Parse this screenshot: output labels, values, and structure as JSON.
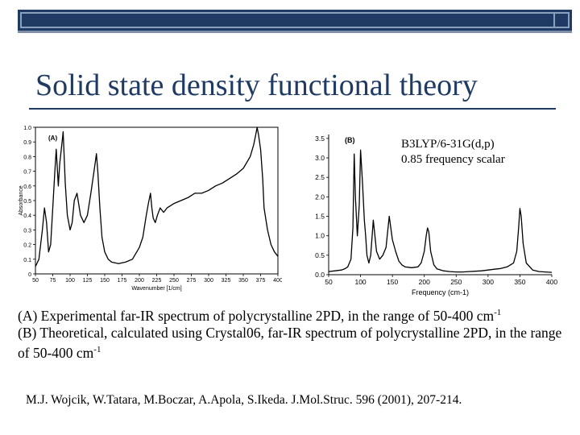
{
  "slide": {
    "title": "Solid state density functional theory",
    "method_line1": "B3LYP/6-31G(d,p)",
    "method_line2": "0.85 frequency scalar",
    "caption_a": "(A) Experimental far-IR spectrum of polycrystalline 2PD, in the range of 50-400 cm",
    "caption_a_sup": "-1",
    "caption_b": "(B) Theoretical, calculated using Crystal06, far-IR spectrum of polycrystalline 2PD, in the range of 50-400 cm",
    "caption_b_sup": "-1",
    "reference": "M.J. Wojcik, W.Tatara, M.Boczar, A.Apola, S.Ikeda. J.Mol.Struc. 596 (2001), 207-214."
  },
  "chart_data": [
    {
      "type": "line",
      "panel_label": "(A)",
      "title": "",
      "xlabel": "Wavenumber [1/cm]",
      "ylabel": "Absorbance",
      "xlim": [
        50,
        400
      ],
      "ylim": [
        0,
        1.0
      ],
      "xticks": [
        50,
        75,
        100,
        125,
        150,
        175,
        200,
        225,
        250,
        275,
        300,
        325,
        350,
        375,
        400
      ],
      "yticks": [
        0,
        0.1,
        0.2,
        0.3,
        0.4,
        0.5,
        0.6,
        0.7,
        0.8,
        0.9,
        1.0
      ],
      "xtick_labels": [
        "50",
        "75",
        "100",
        "125",
        "150",
        "175",
        "200",
        "225",
        "250",
        "275",
        "300",
        "325",
        "350",
        "375",
        "400"
      ],
      "ytick_labels": [
        "0",
        "0.1",
        "0.2",
        "0.3",
        "0.4",
        "0.5",
        "0.6",
        "0.7",
        "0.8",
        "0.9",
        "1.0"
      ],
      "x": [
        50,
        55,
        60,
        63,
        66,
        69,
        72,
        75,
        78,
        80,
        83,
        85,
        88,
        90,
        93,
        96,
        100,
        103,
        106,
        110,
        115,
        120,
        125,
        130,
        133,
        136,
        138,
        140,
        143,
        146,
        150,
        155,
        160,
        170,
        180,
        190,
        200,
        205,
        210,
        213,
        216,
        218,
        220,
        223,
        226,
        230,
        235,
        240,
        250,
        260,
        270,
        280,
        290,
        300,
        310,
        320,
        330,
        340,
        350,
        360,
        365,
        368,
        370,
        372,
        375,
        378,
        380,
        385,
        390,
        395,
        400
      ],
      "y": [
        0.05,
        0.1,
        0.3,
        0.45,
        0.35,
        0.15,
        0.2,
        0.45,
        0.7,
        0.85,
        0.6,
        0.75,
        0.88,
        0.97,
        0.62,
        0.4,
        0.3,
        0.35,
        0.5,
        0.55,
        0.4,
        0.35,
        0.4,
        0.55,
        0.65,
        0.75,
        0.82,
        0.7,
        0.45,
        0.25,
        0.15,
        0.1,
        0.08,
        0.07,
        0.08,
        0.1,
        0.18,
        0.25,
        0.4,
        0.48,
        0.55,
        0.45,
        0.38,
        0.35,
        0.4,
        0.45,
        0.42,
        0.45,
        0.48,
        0.5,
        0.52,
        0.55,
        0.55,
        0.57,
        0.6,
        0.62,
        0.65,
        0.68,
        0.72,
        0.8,
        0.88,
        0.95,
        1.0,
        0.95,
        0.85,
        0.65,
        0.45,
        0.3,
        0.2,
        0.15,
        0.12
      ]
    },
    {
      "type": "line",
      "panel_label": "(B)",
      "title": "",
      "xlabel": "Frequency (cm-1)",
      "ylabel": "",
      "xlim": [
        50,
        400
      ],
      "ylim": [
        0,
        3.6
      ],
      "xticks": [
        50,
        100,
        150,
        200,
        250,
        300,
        350,
        400
      ],
      "yticks": [
        0.0,
        0.5,
        1.0,
        1.5,
        2.0,
        2.5,
        3.0,
        3.5
      ],
      "xtick_labels": [
        "50",
        "100",
        "150",
        "200",
        "250",
        "300",
        "350",
        "400"
      ],
      "ytick_labels": [
        "0.0",
        "0.5",
        "1.0",
        "1.5",
        "2.0",
        "2.5",
        "3.0",
        "3.5"
      ],
      "x": [
        50,
        60,
        70,
        75,
        80,
        85,
        88,
        90,
        92,
        95,
        98,
        100,
        103,
        106,
        108,
        110,
        113,
        116,
        120,
        125,
        130,
        135,
        140,
        145,
        150,
        155,
        160,
        165,
        170,
        180,
        190,
        195,
        200,
        203,
        205,
        207,
        210,
        215,
        220,
        230,
        240,
        250,
        260,
        270,
        280,
        290,
        300,
        310,
        320,
        330,
        340,
        345,
        348,
        350,
        352,
        355,
        360,
        370,
        380,
        400
      ],
      "y": [
        0.08,
        0.1,
        0.12,
        0.15,
        0.2,
        0.4,
        1.2,
        3.1,
        2.0,
        1.0,
        1.8,
        3.2,
        2.4,
        1.4,
        1.0,
        0.5,
        0.3,
        0.5,
        1.4,
        0.6,
        0.4,
        0.5,
        0.7,
        1.5,
        0.9,
        0.6,
        0.35,
        0.25,
        0.2,
        0.18,
        0.2,
        0.3,
        0.6,
        1.0,
        1.2,
        1.1,
        0.6,
        0.25,
        0.15,
        0.1,
        0.08,
        0.07,
        0.07,
        0.08,
        0.09,
        0.1,
        0.12,
        0.14,
        0.16,
        0.2,
        0.3,
        0.6,
        1.2,
        1.7,
        1.5,
        0.8,
        0.3,
        0.12,
        0.08,
        0.06
      ]
    }
  ]
}
